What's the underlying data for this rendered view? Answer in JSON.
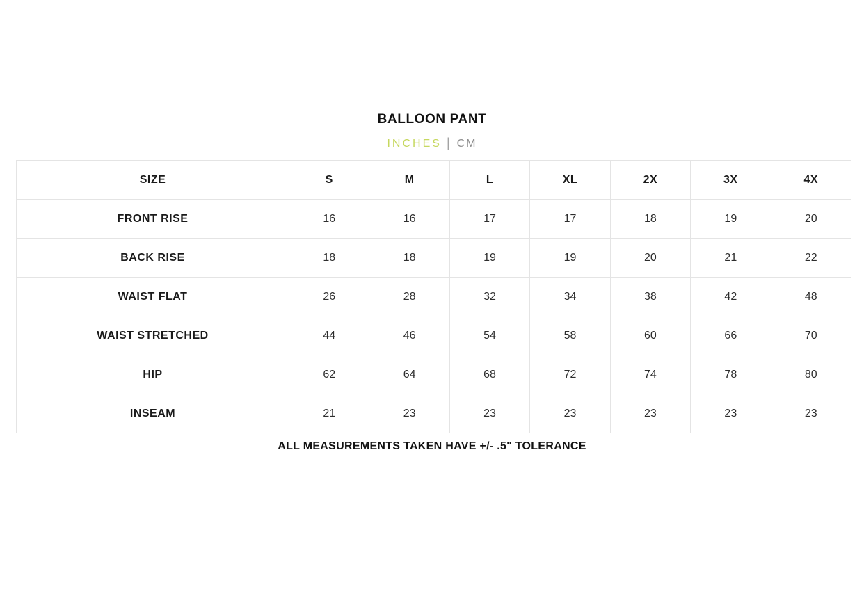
{
  "page": {
    "title": "BALLOON PANT",
    "units": {
      "inches_label": "INCHES",
      "cm_label": "CM",
      "separator": "|",
      "active_unit": "INCHES",
      "active_color": "#c6d85f",
      "inactive_color": "#8e8e8e"
    },
    "footer_note": "ALL MEASUREMENTS TAKEN HAVE +/- .5\" TOLERANCE"
  },
  "size_chart": {
    "headers": [
      "SIZE",
      "S",
      "M",
      "L",
      "XL",
      "2X",
      "3X",
      "4X"
    ],
    "rows": [
      {
        "label": "FRONT RISE",
        "values": [
          "16",
          "16",
          "17",
          "17",
          "18",
          "19",
          "20"
        ]
      },
      {
        "label": "BACK RISE",
        "values": [
          "18",
          "18",
          "19",
          "19",
          "20",
          "21",
          "22"
        ]
      },
      {
        "label": "WAIST FLAT",
        "values": [
          "26",
          "28",
          "32",
          "34",
          "38",
          "42",
          "48"
        ]
      },
      {
        "label": "WAIST STRETCHED",
        "values": [
          "44",
          "46",
          "54",
          "58",
          "60",
          "66",
          "70"
        ]
      },
      {
        "label": "HIP",
        "values": [
          "62",
          "64",
          "68",
          "72",
          "74",
          "78",
          "80"
        ]
      },
      {
        "label": "INSEAM",
        "values": [
          "21",
          "23",
          "23",
          "23",
          "23",
          "23",
          "23"
        ]
      }
    ]
  }
}
